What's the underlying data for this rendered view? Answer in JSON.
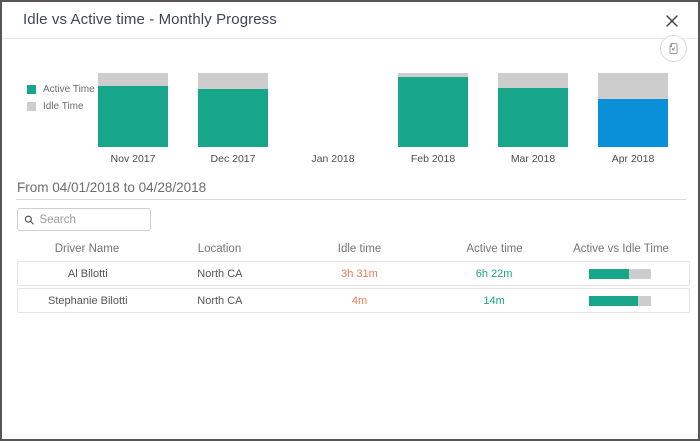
{
  "dialog": {
    "title": "Idle vs Active time - Monthly Progress"
  },
  "chart_data": {
    "type": "bar",
    "stacked": true,
    "unit": "percent",
    "categories": [
      "Nov 2017",
      "Dec 2017",
      "Jan 2018",
      "Feb 2018",
      "Mar 2018",
      "Apr 2018"
    ],
    "series": [
      {
        "name": "Active Time",
        "values": [
          82,
          78,
          null,
          95,
          80,
          65
        ]
      },
      {
        "name": "Idle Time",
        "values": [
          18,
          22,
          null,
          5,
          20,
          35
        ]
      }
    ],
    "highlighted_category": "Apr 2018",
    "colors": {
      "active": "#17a689",
      "idle": "#cdcdcd",
      "active_highlight": "#0990d9"
    },
    "legend_position": "left",
    "ylim": [
      0,
      100
    ],
    "grid": false
  },
  "period": {
    "label": "From 04/01/2018 to 04/28/2018"
  },
  "search": {
    "placeholder": "Search"
  },
  "table": {
    "columns": [
      "Driver Name",
      "Location",
      "Idle time",
      "Active time",
      "Active vs Idle Time"
    ],
    "rows": [
      {
        "driver_name": "Al Bilotti",
        "location": "North CA",
        "idle_time": "3h 31m",
        "active_time": "6h 22m",
        "active_pct": 64
      },
      {
        "driver_name": "Stephanie Bilotti",
        "location": "North CA",
        "idle_time": "4m",
        "active_time": "14m",
        "active_pct": 78
      }
    ]
  },
  "colors": {
    "idle_text": "#e87d51",
    "active_text": "#17a689"
  }
}
